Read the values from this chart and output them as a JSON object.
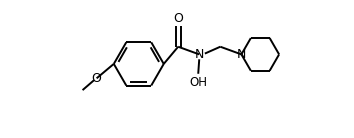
{
  "bg_color": "#ffffff",
  "line_color": "#000000",
  "line_width": 1.4,
  "font_size": 8.5,
  "fig_width": 3.54,
  "fig_height": 1.38,
  "dpi": 100,
  "xlim": [
    -0.7,
    1.45
  ],
  "ylim": [
    -0.72,
    0.62
  ]
}
